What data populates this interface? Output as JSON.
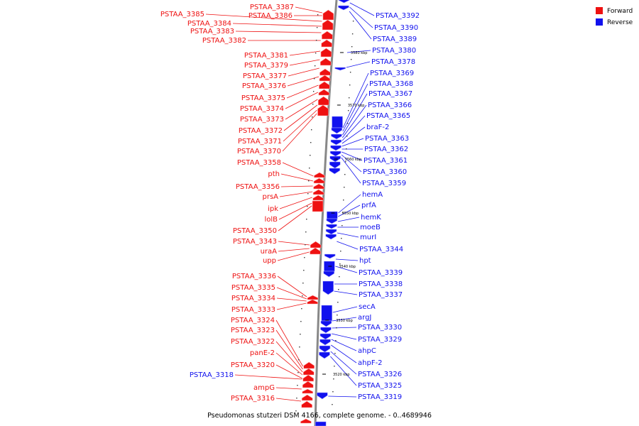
{
  "caption": "Pseudomonas stutzeri DSM 4166, complete genome. - 0..4689946",
  "legend": [
    {
      "label": "Forward",
      "color": "#ee1111"
    },
    {
      "label": "Reverse",
      "color": "#1111ee"
    }
  ],
  "colors": {
    "forward": "#ee1111",
    "reverse": "#1111ee",
    "axis": "#888888"
  },
  "ticks": [
    "3580 kbp",
    "3570 kbp",
    "3560 kbp",
    "3550 kbp",
    "3540 kbp",
    "3530 kbp",
    "3520 kbp"
  ],
  "forward_genes": [
    "PSTAA_3387",
    "PSTAA_3386",
    "PSTAA_3385",
    "PSTAA_3384",
    "PSTAA_3383",
    "PSTAA_3382",
    "PSTAA_3381",
    "PSTAA_3379",
    "PSTAA_3377",
    "PSTAA_3376",
    "PSTAA_3375",
    "PSTAA_3374",
    "PSTAA_3373",
    "PSTAA_3372",
    "PSTAA_3371",
    "PSTAA_3370",
    "PSTAA_3358",
    "pth",
    "PSTAA_3356",
    "prsA",
    "ipk",
    "lolB",
    "PSTAA_3350",
    "PSTAA_3343",
    "uraA",
    "upp",
    "PSTAA_3336",
    "PSTAA_3335",
    "PSTAA_3334",
    "PSTAA_3333",
    "PSTAA_3324",
    "PSTAA_3323",
    "PSTAA_3322",
    "panE-2",
    "PSTAA_3320",
    "ampG",
    "PSTAA_3316"
  ],
  "reverse_genes": [
    "PSTAA_3392",
    "PSTAA_3390",
    "PSTAA_3389",
    "PSTAA_3380",
    "PSTAA_3378",
    "PSTAA_3369",
    "PSTAA_3368",
    "PSTAA_3367",
    "PSTAA_3366",
    "PSTAA_3365",
    "braF-2",
    "PSTAA_3363",
    "PSTAA_3362",
    "PSTAA_3361",
    "PSTAA_3360",
    "PSTAA_3359",
    "hemA",
    "prfA",
    "hemK",
    "moeB",
    "murI",
    "PSTAA_3344",
    "hpt",
    "PSTAA_3339",
    "PSTAA_3338",
    "PSTAA_3337",
    "secA",
    "argJ",
    "PSTAA_3330",
    "PSTAA_3329",
    "ahpC",
    "ahpF-2",
    "PSTAA_3326",
    "PSTAA_3325",
    "PSTAA_3318",
    "PSTAA_3319"
  ]
}
